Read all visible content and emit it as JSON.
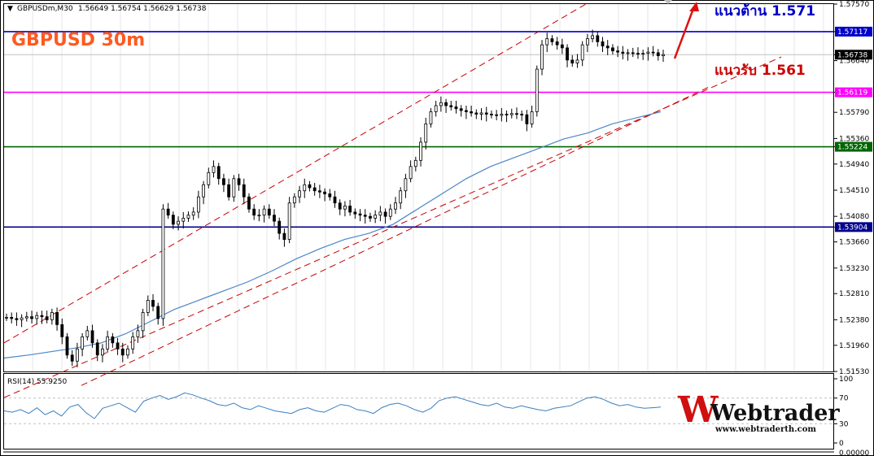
{
  "header": {
    "arrow_glyph": "▼",
    "symbol": "GBPUSDm,M30",
    "ohlc": "1.56649 1.56754 1.56629 1.56738"
  },
  "overlay": {
    "title": "GBPUSD 30m",
    "resistance_label": "แนวต้าน 1.571",
    "support_label": "แนวรับ 1.561",
    "logo_text": "Webtrader",
    "logo_url": "www.webtraderth.com"
  },
  "indicator": {
    "label": "RSI(14) 55.9250",
    "ticks": [
      "100",
      "70",
      "30",
      "0"
    ],
    "bottom_value": "0.00000"
  },
  "price_axis": {
    "ticks": [
      "1.57570",
      "1.57117",
      "1.56738",
      "1.56640",
      "1.56119",
      "1.55790",
      "1.55360",
      "1.55224",
      "1.54940",
      "1.54510",
      "1.54080",
      "1.53904",
      "1.53660",
      "1.53230",
      "1.52810",
      "1.52380",
      "1.51960",
      "1.51530"
    ]
  },
  "colors": {
    "resistance_line": "#0000c8",
    "support_line": "#ff00ff",
    "green_line": "#006400",
    "navy_line": "#00008b",
    "channel": "#c80000",
    "ma_line": "#4a86c8",
    "rsi_line": "#3a7fc0",
    "title": "#ff5a1f",
    "resistance_text": "#0000c8",
    "support_text": "#cc0000"
  },
  "chart_data": {
    "type": "candlestick",
    "symbol": "GBPUSDm",
    "timeframe": "M30",
    "title": "GBPUSD 30m",
    "y_axis_range": [
      1.5153,
      1.5757
    ],
    "horizontal_levels": [
      {
        "value": 1.57117,
        "label": "1.57117",
        "color": "#0000c8"
      },
      {
        "value": 1.56119,
        "label": "1.56119",
        "color": "#ff00ff"
      },
      {
        "value": 1.55224,
        "label": "1.55224",
        "color": "#006400"
      },
      {
        "value": 1.53904,
        "label": "1.53904",
        "color": "#00008b"
      }
    ],
    "current_price": 1.56738,
    "close_series": [
      1.5242,
      1.524,
      1.5238,
      1.5241,
      1.5243,
      1.524,
      1.5245,
      1.5243,
      1.5238,
      1.525,
      1.523,
      1.521,
      1.518,
      1.517,
      1.519,
      1.521,
      1.522,
      1.52,
      1.518,
      1.519,
      1.521,
      1.52,
      1.519,
      1.518,
      1.519,
      1.521,
      1.522,
      1.525,
      1.527,
      1.526,
      1.524,
      1.542,
      1.541,
      1.5395,
      1.54,
      1.5405,
      1.541,
      1.5415,
      1.544,
      1.546,
      1.548,
      1.549,
      1.547,
      1.546,
      1.544,
      1.547,
      1.546,
      1.544,
      1.542,
      1.541,
      1.541,
      1.542,
      1.541,
      1.54,
      1.538,
      1.537,
      1.543,
      1.544,
      1.545,
      1.546,
      1.5455,
      1.545,
      1.5448,
      1.5445,
      1.544,
      1.543,
      1.542,
      1.5425,
      1.5415,
      1.5412,
      1.541,
      1.5408,
      1.5405,
      1.541,
      1.5415,
      1.5408,
      1.542,
      1.543,
      1.545,
      1.547,
      1.549,
      1.55,
      1.553,
      1.556,
      1.558,
      1.559,
      1.5595,
      1.559,
      1.5588,
      1.5585,
      1.5582,
      1.558,
      1.5578,
      1.5576,
      1.5578,
      1.5576,
      1.5575,
      1.5574,
      1.5576,
      1.5575,
      1.5577,
      1.5576,
      1.5575,
      1.556,
      1.558,
      1.565,
      1.569,
      1.57,
      1.5695,
      1.569,
      1.5685,
      1.5665,
      1.566,
      1.5665,
      1.569,
      1.57,
      1.5705,
      1.5695,
      1.5688,
      1.5685,
      1.568,
      1.5678,
      1.5676,
      1.5677,
      1.5676,
      1.5675,
      1.5676,
      1.5678,
      1.5677,
      1.5672,
      1.5674
    ],
    "moving_average": [
      1.5175,
      1.518,
      1.5186,
      1.5192,
      1.52,
      1.5215,
      1.5235,
      1.5255,
      1.527,
      1.5285,
      1.53,
      1.5318,
      1.5338,
      1.5355,
      1.537,
      1.538,
      1.5395,
      1.542,
      1.5445,
      1.547,
      1.549,
      1.5505,
      1.552,
      1.5535,
      1.5545,
      1.556,
      1.557,
      1.558
    ],
    "indicator": {
      "name": "RSI(14)",
      "value": 55.925,
      "range": [
        0,
        100
      ],
      "levels": [
        70,
        30
      ],
      "series": [
        50,
        48,
        52,
        46,
        55,
        44,
        50,
        42,
        56,
        60,
        47,
        38,
        54,
        58,
        62,
        55,
        48,
        65,
        70,
        74,
        68,
        72,
        78,
        75,
        70,
        66,
        60,
        58,
        62,
        55,
        52,
        58,
        54,
        50,
        48,
        46,
        52,
        55,
        50,
        48,
        54,
        60,
        58,
        52,
        50,
        46,
        55,
        60,
        62,
        58,
        52,
        48,
        54,
        66,
        70,
        72,
        68,
        64,
        60,
        58,
        62,
        56,
        54,
        58,
        55,
        52,
        50,
        54,
        56,
        58,
        64,
        70,
        72,
        68,
        62,
        58,
        60,
        56,
        54,
        55,
        56
      ]
    }
  }
}
